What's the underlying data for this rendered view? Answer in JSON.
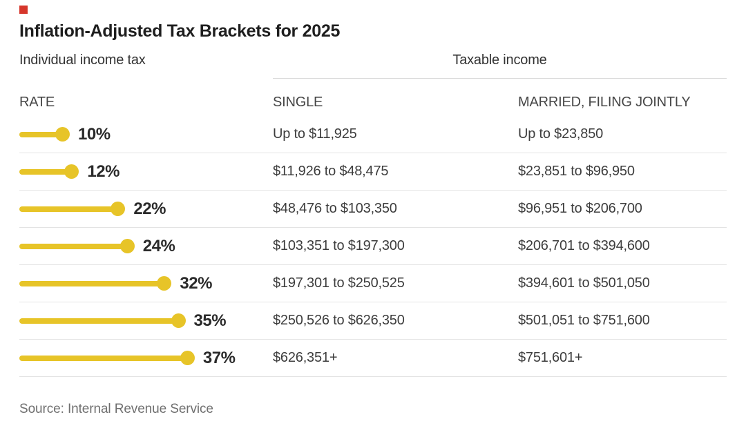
{
  "brand": {
    "red_square_color": "#d6362b"
  },
  "chart_data": {
    "type": "bar",
    "variant": "lollipop",
    "title": "Inflation-Adjusted Tax Brackets for 2025",
    "left_section_label": "Individual income tax",
    "group_header": "Taxable income",
    "columns": [
      "RATE",
      "SINGLE",
      "MARRIED, FILING JOINTLY"
    ],
    "bar_color": "#e7c428",
    "x_axis_percent_range": [
      0,
      37
    ],
    "legend_position": "none",
    "grid": "row-separators-only",
    "rows": [
      {
        "rate_percent": 10,
        "rate_label": "10%",
        "single": "Up to $11,925",
        "married": "Up to $23,850"
      },
      {
        "rate_percent": 12,
        "rate_label": "12%",
        "single": "$11,926 to $48,475",
        "married": "$23,851 to $96,950"
      },
      {
        "rate_percent": 22,
        "rate_label": "22%",
        "single": "$48,476 to $103,350",
        "married": "$96,951 to $206,700"
      },
      {
        "rate_percent": 24,
        "rate_label": "24%",
        "single": "$103,351 to $197,300",
        "married": "$206,701 to $394,600"
      },
      {
        "rate_percent": 32,
        "rate_label": "32%",
        "single": "$197,301 to $250,525",
        "married": "$394,601 to $501,050"
      },
      {
        "rate_percent": 35,
        "rate_label": "35%",
        "single": "$250,526 to $626,350",
        "married": "$501,051 to $751,600"
      },
      {
        "rate_percent": 37,
        "rate_label": "37%",
        "single": "$626,351+",
        "married": "$751,601+"
      }
    ],
    "source": "Source: Internal Revenue Service"
  }
}
